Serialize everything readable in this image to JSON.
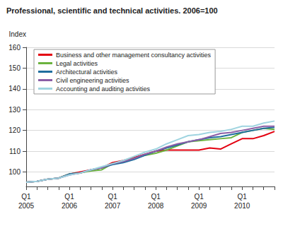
{
  "chart_data": {
    "type": "line",
    "title": "Professional, scientific and technical activities. 2006=100",
    "y_label": "Index",
    "categories": [
      "Q1\n2005",
      null,
      null,
      null,
      "Q1\n2006",
      null,
      null,
      null,
      "Q1\n2007",
      null,
      null,
      null,
      "Q1\n2008",
      null,
      null,
      null,
      "Q1\n2009",
      null,
      null,
      null,
      "Q1\n2010",
      null,
      null,
      null
    ],
    "series": [
      {
        "name": "Business and other management consultancy activities",
        "color": "#e3000f",
        "values": [
          95,
          95.5,
          96.5,
          97,
          99,
          100,
          101,
          102,
          104.5,
          105.5,
          107,
          108.5,
          110,
          110.5,
          110.5,
          110.5,
          110.5,
          111.5,
          111,
          113.5,
          116,
          116,
          117.5,
          119.5
        ]
      },
      {
        "name": "Legal activities",
        "color": "#6bb33e",
        "values": [
          95,
          95.5,
          96.5,
          97,
          99,
          99.5,
          100.5,
          101,
          104,
          105,
          106.5,
          108,
          109,
          110.5,
          112.5,
          114.5,
          115,
          115.5,
          116,
          116.5,
          119,
          120,
          121,
          120.5
        ]
      },
      {
        "name": "Architectural activities",
        "color": "#1f6e9e",
        "values": [
          95,
          95.5,
          96.5,
          97,
          99,
          99.5,
          101,
          102,
          103.5,
          104.5,
          106,
          108,
          110,
          111.5,
          113,
          114.5,
          115.5,
          116.5,
          117,
          118,
          119,
          120,
          121,
          121.5
        ]
      },
      {
        "name": "Civil engineering activities",
        "color": "#8b5ea7",
        "values": [
          95,
          95.5,
          96.5,
          97,
          98.5,
          99.5,
          101,
          102,
          104,
          105,
          106.5,
          108.5,
          110,
          112,
          113.5,
          114.5,
          115.5,
          117,
          118.5,
          119,
          120,
          121,
          122,
          122
        ]
      },
      {
        "name": "Accounting and auditing activities",
        "color": "#9fd4e0",
        "values": [
          95,
          95.5,
          96.5,
          97,
          98.5,
          99.5,
          101,
          102.5,
          104,
          105.5,
          107.5,
          109.5,
          111,
          113.5,
          115.5,
          117.5,
          118,
          119,
          119.5,
          120.5,
          122,
          122,
          123.5,
          124.5
        ]
      }
    ],
    "ylim": [
      93,
      160
    ],
    "yticks": [
      100,
      110,
      120,
      130,
      140,
      150,
      160
    ],
    "grid": true,
    "legend": "upper left"
  }
}
